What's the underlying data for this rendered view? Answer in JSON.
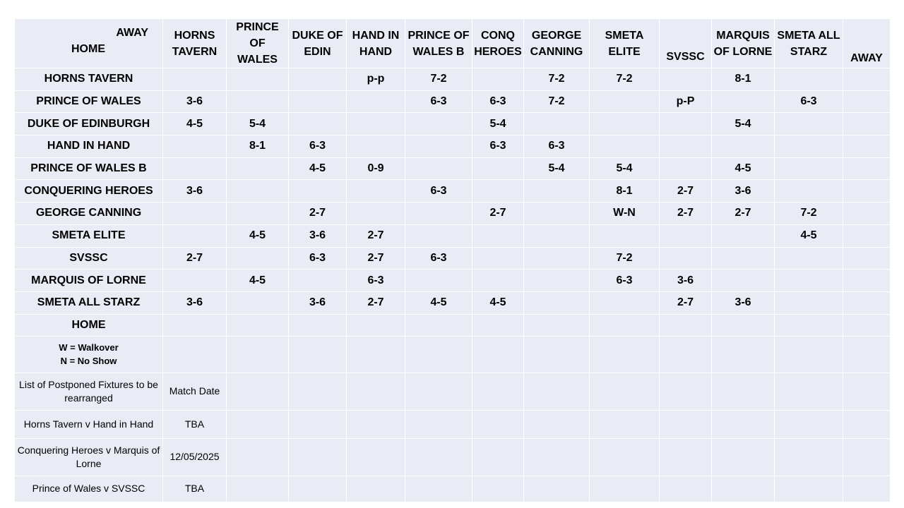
{
  "header": {
    "away_label": "AWAY",
    "home_label": "HOME",
    "columns": [
      [
        "HORNS",
        "TAVERN"
      ],
      [
        "PRINCE OF",
        "WALES"
      ],
      [
        "DUKE OF",
        "EDIN"
      ],
      [
        "HAND IN",
        "HAND"
      ],
      [
        "PRINCE OF",
        "WALES B"
      ],
      [
        "CONQ",
        "HEROES"
      ],
      [
        "GEORGE",
        "CANNING"
      ],
      [
        "SMETA",
        "ELITE"
      ],
      [
        "SVSSC"
      ],
      [
        "MARQUIS",
        "OF LORNE"
      ],
      [
        "SMETA ALL",
        "STARZ"
      ]
    ],
    "away_column": "AWAY"
  },
  "rows": [
    {
      "team": "HORNS TAVERN",
      "results": [
        "",
        "",
        "",
        "p-p",
        "7-2",
        "",
        "7-2",
        "7-2",
        "",
        "8-1",
        ""
      ]
    },
    {
      "team": "PRINCE OF WALES",
      "results": [
        "3-6",
        "",
        "",
        "",
        "6-3",
        "6-3",
        "7-2",
        "",
        "p-P",
        "",
        "6-3"
      ]
    },
    {
      "team": "DUKE OF EDINBURGH",
      "results": [
        "4-5",
        "5-4",
        "",
        "",
        "",
        "5-4",
        "",
        "",
        "",
        "5-4",
        ""
      ]
    },
    {
      "team": "HAND IN HAND",
      "results": [
        "",
        "8-1",
        "6-3",
        "",
        "",
        "6-3",
        "6-3",
        "",
        "",
        "",
        ""
      ]
    },
    {
      "team": "PRINCE OF WALES B",
      "results": [
        "",
        "",
        "4-5",
        "0-9",
        "",
        "",
        "5-4",
        "5-4",
        "",
        "4-5",
        ""
      ]
    },
    {
      "team": "CONQUERING HEROES",
      "results": [
        "3-6",
        "",
        "",
        "",
        "6-3",
        "",
        "",
        "8-1",
        "2-7",
        "3-6",
        ""
      ]
    },
    {
      "team": "GEORGE CANNING",
      "results": [
        "",
        "",
        "2-7",
        "",
        "",
        "2-7",
        "",
        "W-N",
        "2-7",
        "2-7",
        "7-2"
      ]
    },
    {
      "team": "SMETA ELITE",
      "results": [
        "",
        "4-5",
        "3-6",
        "2-7",
        "",
        "",
        "",
        "",
        "",
        "",
        "4-5"
      ]
    },
    {
      "team": "SVSSC",
      "results": [
        "2-7",
        "",
        "6-3",
        "2-7",
        "6-3",
        "",
        "",
        "7-2",
        "",
        "",
        ""
      ]
    },
    {
      "team": "MARQUIS OF LORNE",
      "results": [
        "",
        "4-5",
        "",
        "6-3",
        "",
        "",
        "",
        "6-3",
        "3-6",
        "",
        ""
      ]
    },
    {
      "team": "SMETA ALL STARZ",
      "results": [
        "3-6",
        "",
        "3-6",
        "2-7",
        "4-5",
        "4-5",
        "",
        "",
        "2-7",
        "3-6",
        ""
      ]
    }
  ],
  "home_footer": "HOME",
  "legend": [
    "W = Walkover",
    "N = No Show"
  ],
  "postponed": {
    "header": "List of Postponed Fixtures to be rearranged",
    "date_header": "Match Date",
    "fixtures": [
      {
        "match": "Horns Tavern v Hand in Hand",
        "date": "TBA"
      },
      {
        "match": "Conquering Heroes v Marquis of Lorne",
        "date": "12/05/2025"
      },
      {
        "match": "Prince of Wales v SVSSC",
        "date": "TBA"
      }
    ]
  }
}
